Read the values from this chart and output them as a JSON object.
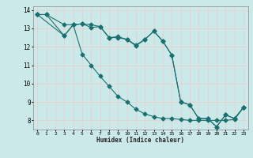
{
  "title": "",
  "xlabel": "Humidex (Indice chaleur)",
  "xlim": [
    -0.5,
    23.5
  ],
  "ylim": [
    7.5,
    14.2
  ],
  "yticks": [
    8,
    9,
    10,
    11,
    12,
    13,
    14
  ],
  "xticks": [
    0,
    1,
    2,
    3,
    4,
    5,
    6,
    7,
    8,
    9,
    10,
    11,
    12,
    13,
    14,
    15,
    16,
    17,
    18,
    19,
    20,
    21,
    22,
    23
  ],
  "bg_color": "#cce9e9",
  "grid_color": "#f0c8c8",
  "line_color": "#1a7070",
  "line1_x": [
    0,
    1,
    3,
    4,
    5,
    6,
    7,
    8,
    9,
    10,
    11,
    12,
    13,
    14,
    15,
    16,
    17,
    18,
    19,
    20,
    21,
    22,
    23
  ],
  "line1_y": [
    13.75,
    13.75,
    13.2,
    13.2,
    13.25,
    13.05,
    13.1,
    12.5,
    12.5,
    12.4,
    12.1,
    12.4,
    12.85,
    12.3,
    11.55,
    9.0,
    8.85,
    8.1,
    8.1,
    7.65,
    8.3,
    8.1,
    8.7
  ],
  "line2_x": [
    0,
    3,
    4,
    5,
    6,
    7,
    8,
    9,
    10,
    11,
    12,
    13,
    14,
    15,
    16,
    17,
    18,
    19,
    20,
    21,
    22,
    23
  ],
  "line2_y": [
    13.75,
    12.6,
    13.2,
    13.25,
    13.2,
    13.1,
    12.5,
    12.55,
    12.4,
    12.05,
    12.4,
    12.85,
    12.3,
    11.55,
    9.0,
    8.85,
    8.1,
    8.1,
    7.65,
    8.3,
    8.1,
    8.7
  ],
  "line3_x": [
    0,
    1,
    3,
    4,
    5,
    6,
    7,
    8,
    9,
    10,
    11,
    12,
    13,
    14,
    15,
    16,
    17,
    18,
    19,
    20,
    21,
    22,
    23
  ],
  "line3_y": [
    13.75,
    13.75,
    12.6,
    13.2,
    11.6,
    11.0,
    10.4,
    9.85,
    9.3,
    9.0,
    8.6,
    8.35,
    8.2,
    8.1,
    8.1,
    8.05,
    8.0,
    8.0,
    8.0,
    8.0,
    8.0,
    8.05,
    8.7
  ]
}
